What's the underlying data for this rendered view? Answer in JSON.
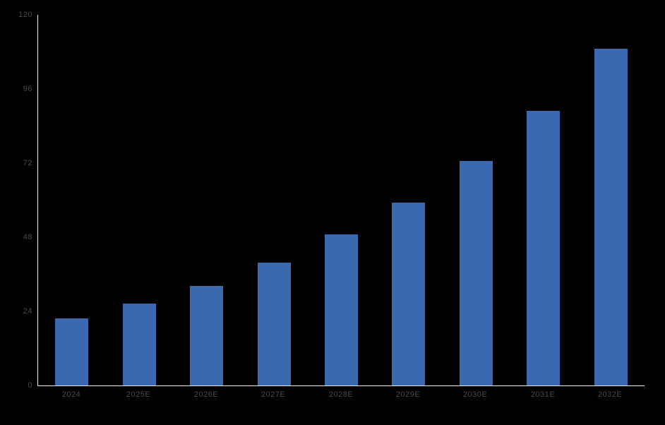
{
  "chart_data": {
    "type": "bar",
    "title": "",
    "xlabel": "",
    "ylabel": "",
    "categories": [
      "2024",
      "2025E",
      "2026E",
      "2027E",
      "2028E",
      "2029E",
      "2030E",
      "2031E",
      "2032E"
    ],
    "values": [
      21.6,
      26.4,
      32.3,
      39.7,
      48.8,
      59.2,
      72.6,
      88.9,
      109.1
    ],
    "ylim": [
      0,
      120
    ],
    "yticks": [
      0,
      24,
      48,
      72,
      96,
      120
    ],
    "grid": false,
    "legend": null,
    "colors": {
      "bar": "#3B69B0",
      "axis_line": "#EDEDED",
      "tick_label": "#4A4A4A",
      "background": "#000000"
    }
  }
}
